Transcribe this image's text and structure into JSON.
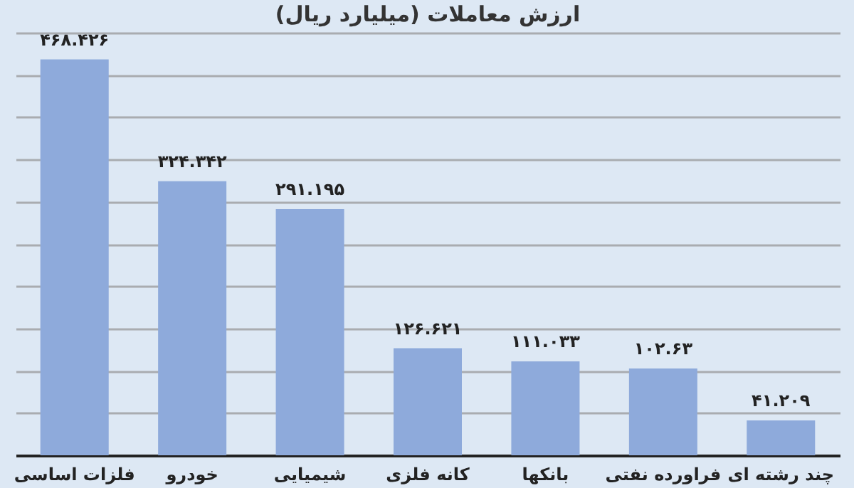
{
  "chart_data": {
    "type": "bar",
    "title": "ارزش معاملات  (میلیارد ریال)",
    "categories": [
      "فلزات اساسی",
      "خودرو",
      "شیمیایی",
      "کانه فلزی",
      "بانکها",
      "فراورده نفتی",
      "چند رشته ای"
    ],
    "values": [
      468.426,
      324.342,
      291.195,
      126.621,
      111.033,
      102.63,
      41.209
    ],
    "value_labels": [
      "۴۶۸.۴۲۶",
      "۳۲۴.۳۴۲",
      "۲۹۱.۱۹۵",
      "۱۲۶.۶۲۱",
      "۱۱۱.۰۳۳",
      "۱۰۲.۶۳",
      "۴۱.۲۰۹"
    ],
    "color": "#8eaadb",
    "ylim": [
      0,
      500
    ],
    "yticks": [
      {
        "value": 0,
        "label": null
      },
      {
        "value": 50,
        "label": null
      },
      {
        "value": 100,
        "label": null
      },
      {
        "value": 150,
        "label": null
      },
      {
        "value": 200,
        "label": null
      },
      {
        "value": 250,
        "label": null
      },
      {
        "value": 300,
        "label": null
      },
      {
        "value": 350,
        "label": null
      },
      {
        "value": 400,
        "label": null
      },
      {
        "value": 450,
        "label": null
      },
      {
        "value": 500,
        "label": null
      }
    ],
    "grid": "y",
    "tick_labels": "x"
  }
}
